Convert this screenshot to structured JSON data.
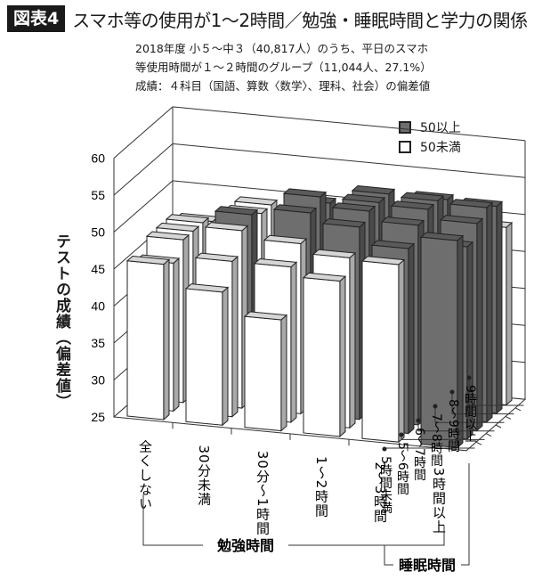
{
  "header": {
    "badge": "図表4",
    "title": "スマホ等の使用が1～2時間／勉強・睡眠時間と学力の関係"
  },
  "subtitle": {
    "line1": "2018年度 小５～中３（40,817人）のうち、平日のスマホ",
    "line2": "等使用時間が１～２時間のグループ（11,044人、27.1%）",
    "line3": "成績：４科目（国語、算数〈数学〉、理科、社会）の偏差値"
  },
  "legend": {
    "items": [
      {
        "label": "50以上",
        "color": "#6e6e6e"
      },
      {
        "label": "50未満",
        "color": "#ffffff"
      }
    ]
  },
  "axes": {
    "ylabel": "テストの成績（偏差値）",
    "xlabel": "勉強時間",
    "zlabel": "睡眠時間",
    "yticks": [
      "25",
      "30",
      "35",
      "40",
      "45",
      "50",
      "55",
      "60"
    ]
  },
  "chart_data": {
    "type": "bar",
    "subtype": "3d-bar-grid",
    "title": "スマホ等の使用が1～2時間／勉強・睡眠時間と学力の関係",
    "subtitle": "2018年度 小５～中３（40,817人）のうち、平日のスマホ等使用時間が１～２時間のグループ（11,044人、27.1%）成績：４科目（国語、算数〈数学〉、理科、社会）の偏差値",
    "ylabel": "テストの成績（偏差値）",
    "xlabel": "勉強時間",
    "zlabel": "睡眠時間",
    "ylim": [
      25,
      60
    ],
    "categories": [
      "全くしない",
      "30分未満",
      "30分～1時間",
      "1～2時間",
      "2～3時間",
      "3時間以上"
    ],
    "series": [
      {
        "name": "5時間未満",
        "values": [
          46,
          43,
          40,
          46,
          49,
          53
        ]
      },
      {
        "name": "5～6時間",
        "values": [
          45,
          46,
          46,
          48,
          50,
          51
        ]
      },
      {
        "name": "6～7時間",
        "values": [
          47,
          49,
          48,
          51,
          52,
          53
        ]
      },
      {
        "name": "7～8時間",
        "values": [
          47,
          50,
          51,
          52,
          53,
          54
        ]
      },
      {
        "name": "8～9時間",
        "values": [
          47,
          49,
          52,
          52,
          53,
          53
        ]
      },
      {
        "name": "9時間以上",
        "values": [
          46,
          49,
          50,
          52,
          52,
          49
        ]
      }
    ],
    "color_rule": {
      "gte_50": "#6e6e6e",
      "lt_50": "#ffffff"
    },
    "legend": [
      "50以上",
      "50未満"
    ],
    "legend_position": "top-right",
    "grid": true
  }
}
